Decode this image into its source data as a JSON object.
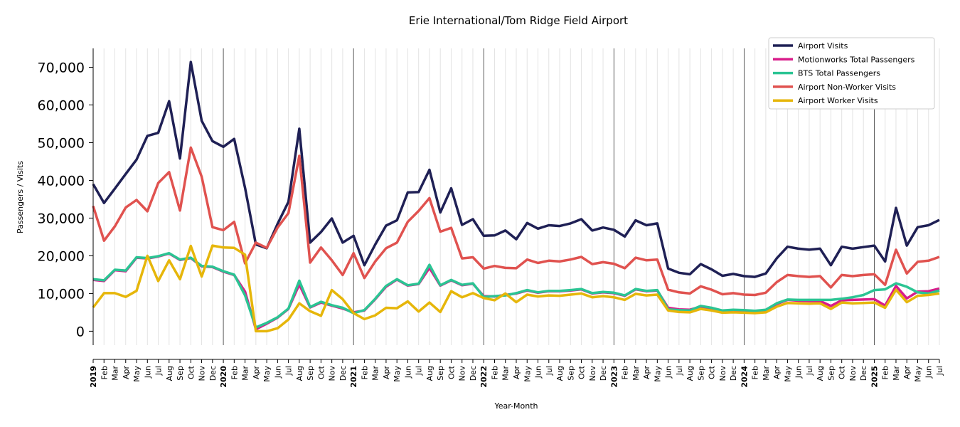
{
  "chart_data": {
    "type": "line",
    "title": "Erie International/Tom Ridge Field Airport",
    "xlabel": "Year-Month",
    "ylabel": "Passengers / Visits",
    "ylim": [
      -3700,
      75000
    ],
    "yticks": [
      0,
      10000,
      20000,
      30000,
      40000,
      50000,
      60000,
      70000
    ],
    "ytick_labels": [
      "0",
      "10,000",
      "20,000",
      "30,000",
      "40,000",
      "50,000",
      "60,000",
      "70,000"
    ],
    "grid": "vertical monthly lines, dark lines at year starts",
    "legend_position": "top-right",
    "x_start": "2019-01",
    "x_end": "2025-07",
    "years": [
      "2019",
      "2020",
      "2021",
      "2022",
      "2023",
      "2024",
      "2025"
    ],
    "months": [
      "Jan",
      "Feb",
      "Mar",
      "Apr",
      "May",
      "Jun",
      "Jul",
      "Aug",
      "Sep",
      "Oct",
      "Nov",
      "Dec"
    ],
    "series": [
      {
        "name": "Airport Visits",
        "color": "#1f2055",
        "values": [
          39000,
          34000,
          37800,
          41700,
          45500,
          51800,
          52600,
          61000,
          45800,
          71400,
          55800,
          50400,
          48900,
          51000,
          38000,
          23000,
          22000,
          28500,
          34300,
          53700,
          23500,
          26300,
          29900,
          23500,
          25300,
          17500,
          23000,
          28000,
          29400,
          36800,
          36900,
          42800,
          31500,
          37900,
          28200,
          29700,
          25300,
          25400,
          26700,
          24400,
          28700,
          27200,
          28100,
          27900,
          28600,
          29700,
          26700,
          27500,
          26900,
          25100,
          29400,
          28100,
          28600,
          16600,
          15500,
          15100,
          17800,
          16400,
          14700,
          15200,
          14600,
          14400,
          15300,
          19300,
          22400,
          21900,
          21600,
          21900,
          17500,
          22400,
          21900,
          22300,
          22700,
          18500,
          32700,
          22700,
          27600,
          28100,
          29500
        ]
      },
      {
        "name": "Motionworks Total Passengers",
        "color": "#d81b8a",
        "values": [
          13600,
          13300,
          16200,
          15900,
          19500,
          19300,
          19800,
          20600,
          18900,
          19400,
          17200,
          17000,
          15800,
          14900,
          10500,
          500,
          2000,
          3600,
          5900,
          12400,
          6300,
          7600,
          6800,
          6000,
          5000,
          5500,
          8500,
          11800,
          13700,
          12100,
          12500,
          16800,
          12100,
          13500,
          12200,
          12600,
          9300,
          9200,
          9600,
          10000,
          10800,
          10200,
          10600,
          10600,
          10800,
          11100,
          10000,
          10300,
          10100,
          9400,
          11100,
          10600,
          10800,
          6200,
          5800,
          5700,
          6500,
          6000,
          5400,
          5600,
          5500,
          5300,
          5600,
          7200,
          8300,
          8100,
          8000,
          8000,
          6700,
          8200,
          8300,
          8400,
          8500,
          6800,
          12000,
          8700,
          10500,
          10600,
          11300
        ]
      },
      {
        "name": "BTS Total Passengers",
        "color": "#2bc493",
        "values": [
          13800,
          13500,
          16300,
          16100,
          19600,
          19400,
          19900,
          20700,
          19000,
          19500,
          17300,
          17100,
          15900,
          15000,
          9500,
          1000,
          2200,
          3700,
          6000,
          13400,
          6400,
          7800,
          6900,
          6200,
          4800,
          5600,
          8600,
          12000,
          13800,
          12200,
          12600,
          17600,
          12200,
          13600,
          12300,
          12700,
          9100,
          9300,
          9500,
          10100,
          10900,
          10300,
          10700,
          10700,
          10900,
          11200,
          10100,
          10400,
          10200,
          9500,
          11200,
          10700,
          10900,
          5800,
          5600,
          5500,
          6700,
          6200,
          5500,
          5700,
          5600,
          5400,
          5700,
          7400,
          8400,
          8300,
          8300,
          8300,
          8300,
          8600,
          9000,
          9600,
          10900,
          11100,
          12700,
          11800,
          10300,
          10000,
          10800
        ]
      },
      {
        "name": "Airport Non-Worker Visits",
        "color": "#e0524f",
        "values": [
          33200,
          24000,
          27800,
          32800,
          34800,
          31800,
          39300,
          42200,
          32000,
          48700,
          41000,
          27600,
          26800,
          29000,
          18000,
          23500,
          22100,
          27500,
          31300,
          46500,
          18200,
          22200,
          18800,
          14900,
          20700,
          14100,
          18500,
          22000,
          23500,
          29000,
          31900,
          35300,
          26400,
          27400,
          19300,
          19600,
          16600,
          17300,
          16800,
          16700,
          19000,
          18100,
          18700,
          18500,
          19000,
          19700,
          17800,
          18300,
          17900,
          16700,
          19500,
          18800,
          19000,
          11000,
          10300,
          10000,
          11900,
          11000,
          9800,
          10100,
          9700,
          9600,
          10200,
          13000,
          14900,
          14600,
          14400,
          14600,
          11600,
          14900,
          14600,
          14900,
          15100,
          12300,
          21600,
          15300,
          18400,
          18700,
          19700
        ]
      },
      {
        "name": "Airport Worker Visits",
        "color": "#e6b60a",
        "values": [
          6300,
          10100,
          10100,
          9100,
          10700,
          20000,
          13300,
          18800,
          13800,
          22600,
          14500,
          22700,
          22200,
          22100,
          20300,
          0,
          0,
          800,
          3100,
          7400,
          5300,
          4100,
          10900,
          8500,
          4800,
          3200,
          4200,
          6200,
          6100,
          7900,
          5200,
          7600,
          5100,
          10600,
          9000,
          10100,
          8800,
          8200,
          10000,
          7700,
          9700,
          9200,
          9500,
          9400,
          9700,
          10000,
          9000,
          9300,
          9000,
          8300,
          9900,
          9500,
          9700,
          5500,
          5100,
          5000,
          5900,
          5500,
          4900,
          5000,
          4900,
          4800,
          5000,
          6500,
          7500,
          7400,
          7300,
          7400,
          5900,
          7600,
          7400,
          7500,
          7600,
          6200,
          11000,
          7700,
          9400,
          9600,
          10000
        ]
      }
    ]
  }
}
